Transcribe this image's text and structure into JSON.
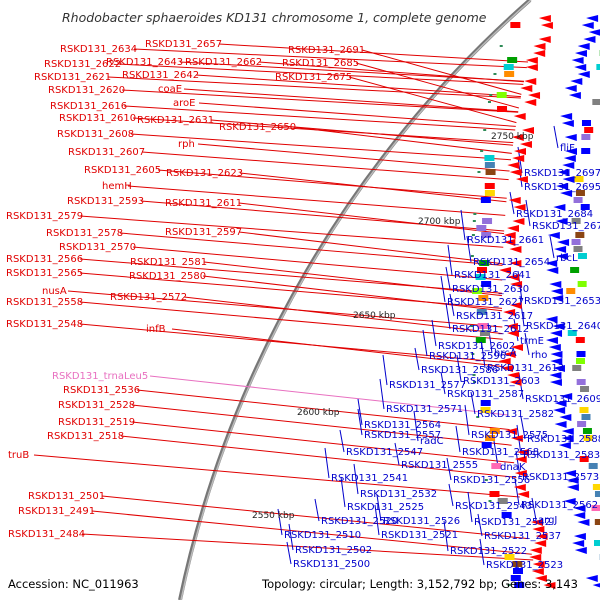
{
  "title": "Rhodobacter sphaeroides KD131 chromosome 1, complete genome",
  "accession": "Accession: NC_011963",
  "summary": "Topology: circular; Length: 3,152,792 bp; Genes: 3,143",
  "colors": {
    "left_label": "#e00000",
    "right_label": "#0000cc",
    "trna_label": "#e870c0",
    "backbone": "#888888"
  },
  "scale_labels": [
    "2750 kbp",
    "2700 kbp",
    "2650 kbp",
    "2600 kbp",
    "2550 kbp"
  ],
  "left_labels": [
    "RSKD131_2657",
    "RSKD131_2634",
    "RSKD131_2643",
    "RSKD131_2662",
    "RSKD131_2622",
    "RSKD131_2621",
    "RSKD131_2642",
    "RSKD131_2620",
    "coaE",
    "aroE",
    "RSKD131_2616",
    "RSKD131_2610",
    "RSKD131_2631",
    "RSKD131_2608",
    "RSKD131_2650",
    "rph",
    "RSKD131_2607",
    "RSKD131_2605",
    "RSKD131_2623",
    "hemH",
    "RSKD131_2593",
    "RSKD131_2611",
    "RSKD131_2579",
    "RSKD131_2597",
    "RSKD131_2578",
    "RSKD131_2570",
    "RSKD131_2581",
    "RSKD131_2566",
    "RSKD131_2580",
    "RSKD131_2565",
    "nusA",
    "RSKD131_2572",
    "RSKD131_2558",
    "infB",
    "RSKD131_2548",
    "RSKD131_trnaLeu5",
    "RSKD131_2536",
    "RSKD131_2528",
    "RSKD131_2519",
    "RSKD131_2518",
    "truB",
    "RSKD131_2501",
    "RSKD131_2491",
    "RSKD131_2484",
    "RSKD131_2691",
    "RSKD131_2685",
    "RSKD131_2675"
  ],
  "right_labels": [
    "fliF",
    "RSKD131_2697",
    "RSKD131_2695",
    "RSKD131_2684",
    "RSKD131_2676",
    "RSKD131_2661",
    "rbcL",
    "RSKD131_2654",
    "RSKD131_2641",
    "RSKD131_2630",
    "RSKD131_2627",
    "RSKD131_2653",
    "RSKD131_2617",
    "RSKD131_2612",
    "RSKD131_2640",
    "trmE",
    "RSKD131_2602",
    "hrcA",
    "rho",
    "RSKD131_2596",
    "RSKD131_2613",
    "RSKD131_2586",
    "RSKD131_2603",
    "RSKD131_2577",
    "RSKD131_2587",
    "RSKD131_2609",
    "RSKD131_2571",
    "RSKD131_2582",
    "RSKD131_2564",
    "RSKD131_2575",
    "RSKD131_2588",
    "RSKD131_2557",
    "radC",
    "RSKD131_2547",
    "RSKD131_2568",
    "RSKD131_2583",
    "RSKD131_2555",
    "dnaK",
    "RSKD131_2541",
    "RSKD131_2556",
    "RSKD131_2573",
    "RSKD131_2532",
    "RSKD131_2543",
    "RSKD131_2562",
    "RSKD131_2525",
    "RSKD131_2520",
    "RSKD131_2526",
    "RSKD131_2542",
    "argJ",
    "RSKD131_2510",
    "RSKD131_2521",
    "RSKD131_2537",
    "RSKD131_2502",
    "RSKD131_2522",
    "RSKD131_2500",
    "RSKD131_2523"
  ]
}
